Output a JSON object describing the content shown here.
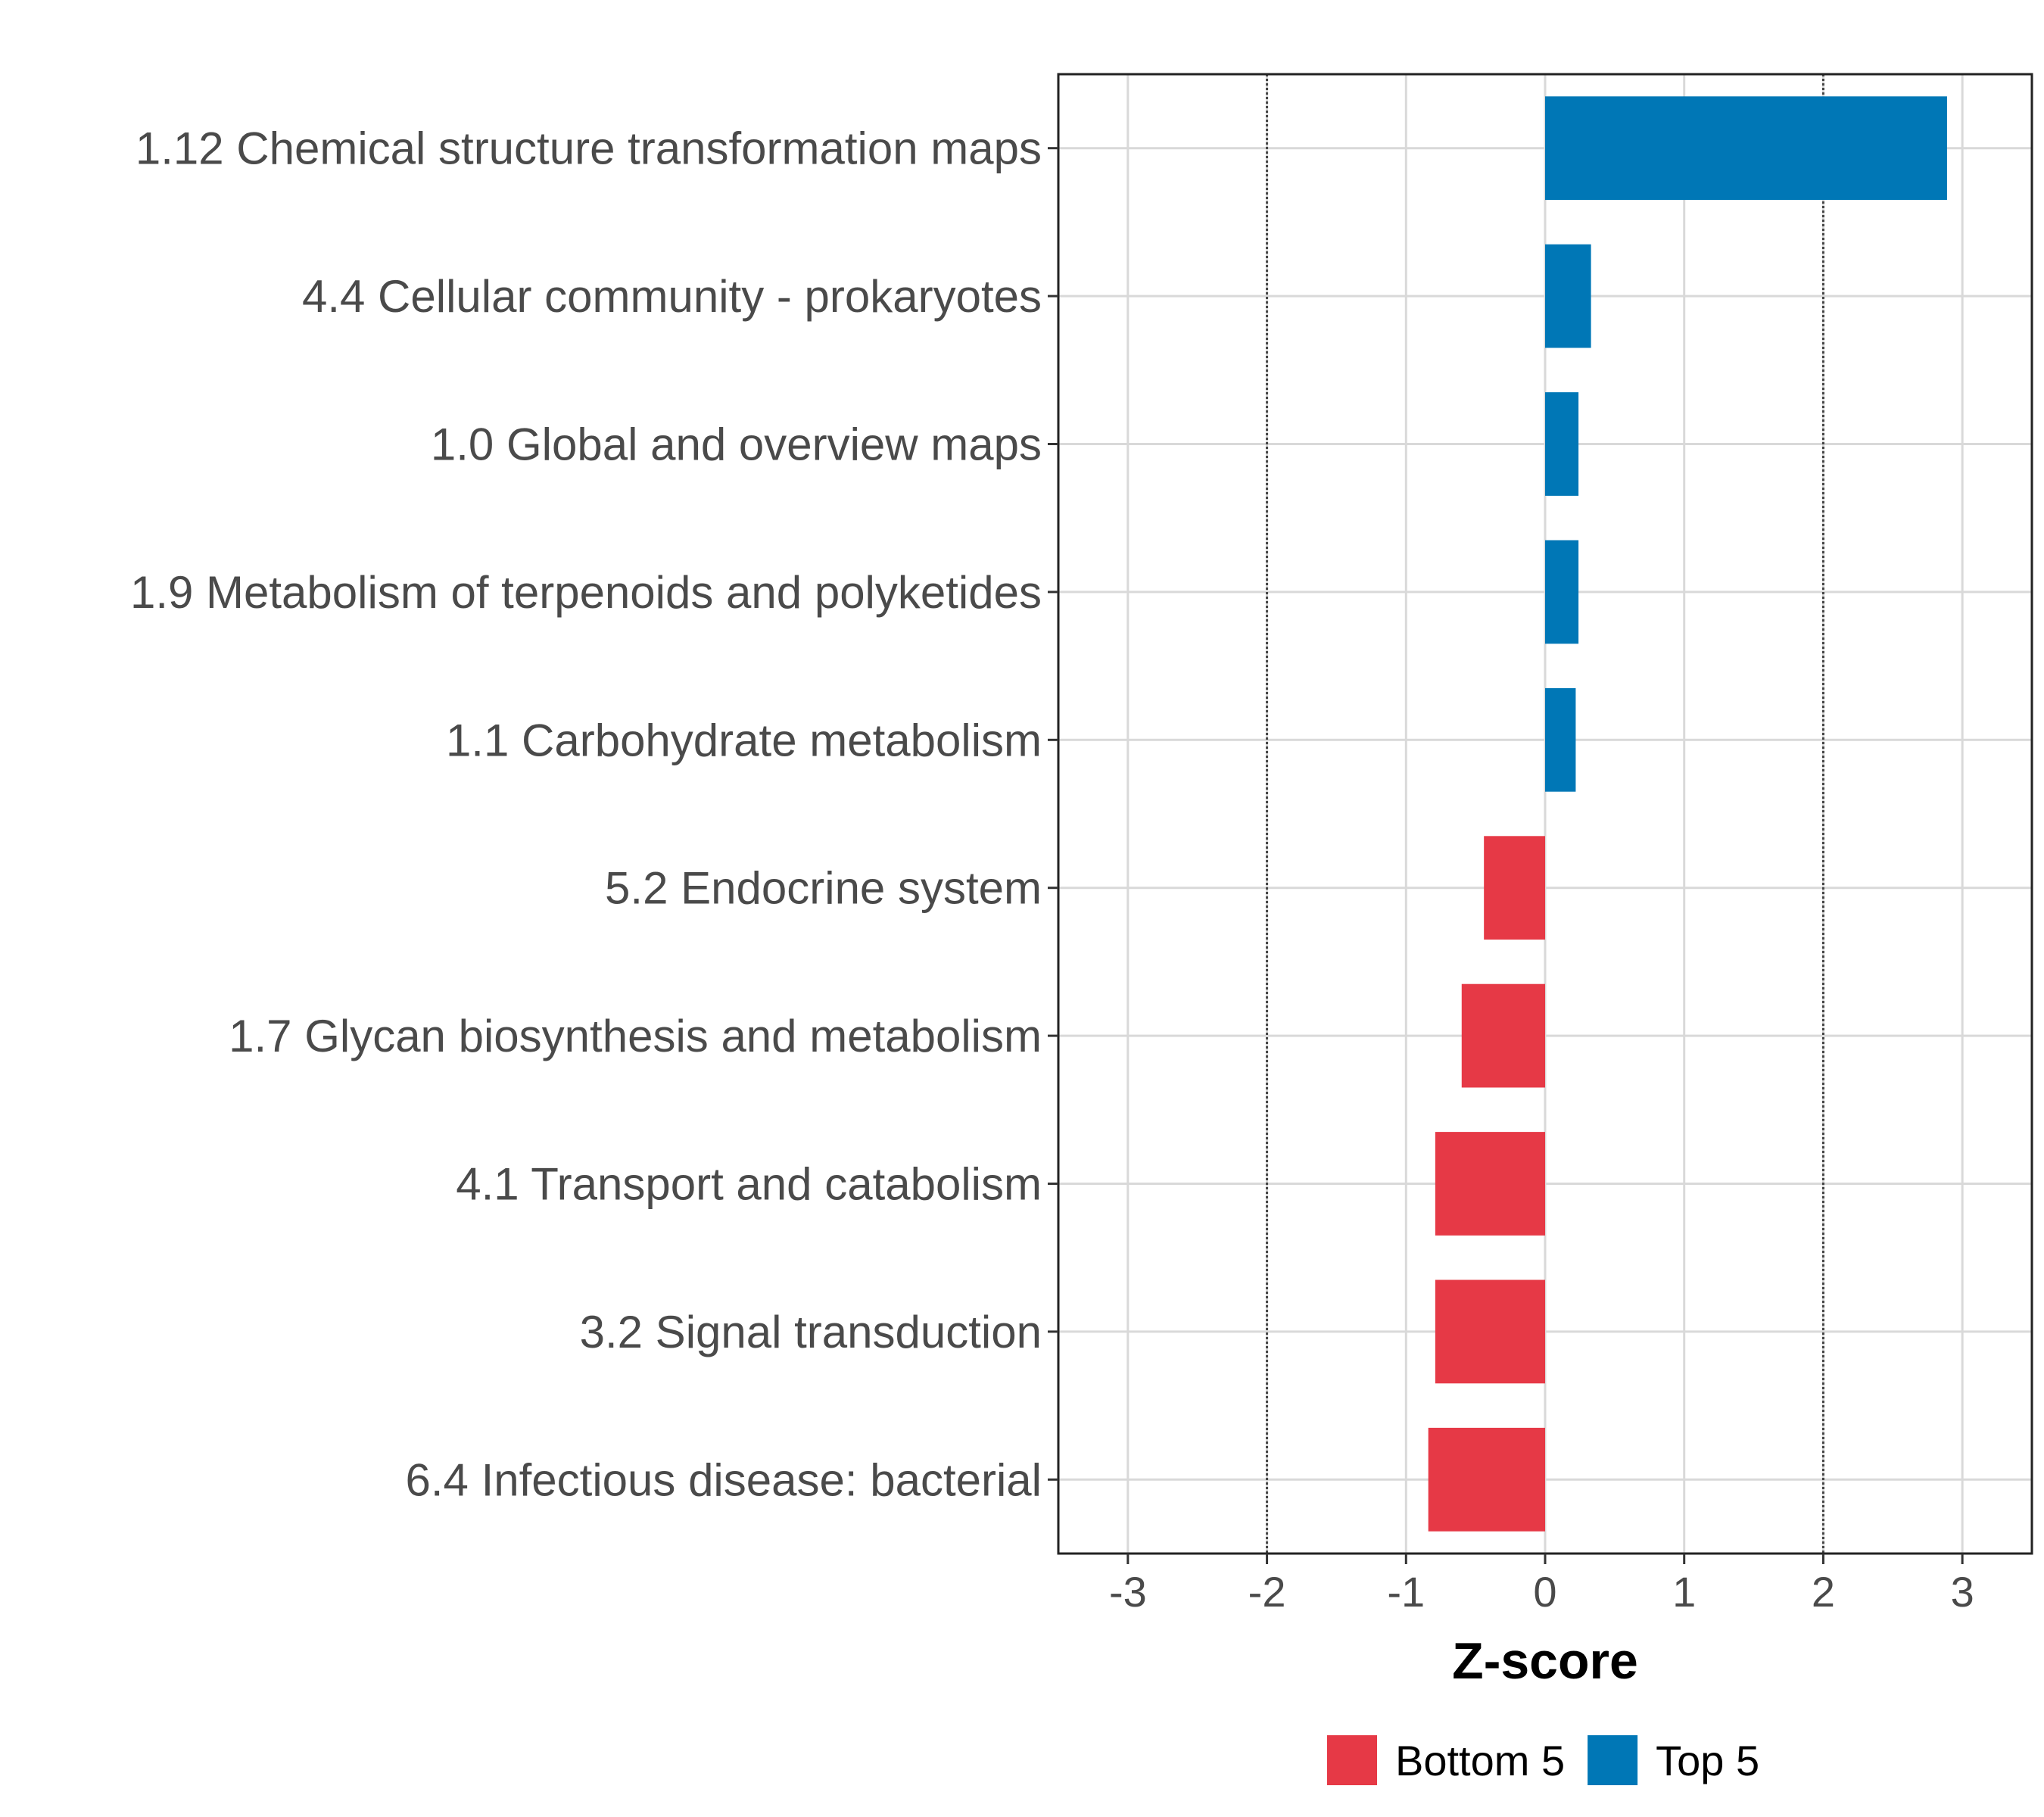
{
  "chart_data": {
    "type": "bar",
    "orientation": "horizontal",
    "title": "",
    "xlabel": "Z-score",
    "ylabel": "",
    "xlim": [
      -3.5,
      3.5
    ],
    "xticks": [
      -3,
      -2,
      -1,
      0,
      1,
      2,
      3
    ],
    "xtick_labels": [
      "-3",
      "-2",
      "-1",
      "0",
      "1",
      "2",
      "3"
    ],
    "reference_lines": [
      -2,
      2
    ],
    "grid": true,
    "categories": [
      "1.12 Chemical structure transformation maps",
      "4.4 Cellular community - prokaryotes",
      "1.0 Global and overview maps",
      "1.9 Metabolism of terpenoids and polyketides",
      "1.1 Carbohydrate metabolism",
      "5.2 Endocrine system",
      "1.7 Glycan biosynthesis and metabolism",
      "4.1 Transport and catabolism",
      "3.2 Signal transduction",
      "6.4 Infectious disease: bacterial"
    ],
    "values": [
      2.89,
      0.33,
      0.24,
      0.24,
      0.22,
      -0.44,
      -0.6,
      -0.79,
      -0.79,
      -0.84
    ],
    "groups": [
      "Top 5",
      "Top 5",
      "Top 5",
      "Top 5",
      "Top 5",
      "Bottom 5",
      "Bottom 5",
      "Bottom 5",
      "Bottom 5",
      "Bottom 5"
    ],
    "legend": {
      "position": "bottom",
      "entries": [
        {
          "label": "Bottom 5",
          "color": "#E63946"
        },
        {
          "label": "Top 5",
          "color": "#0077B6"
        }
      ]
    }
  }
}
